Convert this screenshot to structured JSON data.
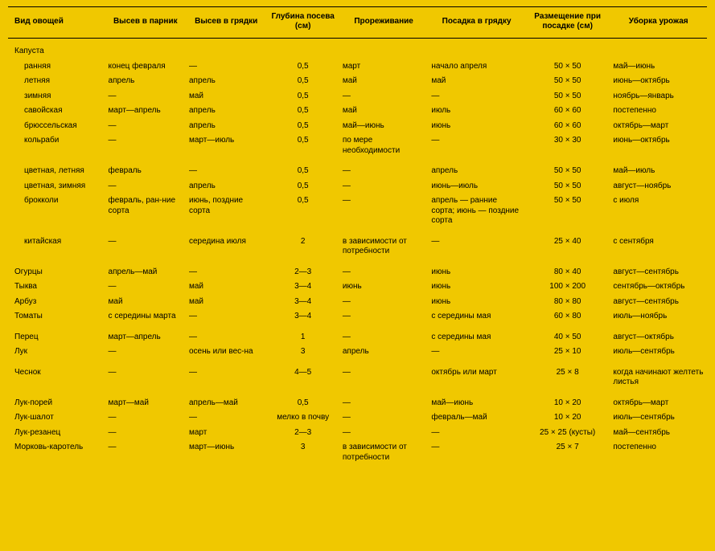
{
  "columns": [
    "Вид овощей",
    "Высев в парник",
    "Высев в грядки",
    "Глубина посева (см)",
    "Прореживание",
    "Посадка в грядку",
    "Размещение при посадке (см)",
    "Уборка урожая"
  ],
  "rows": [
    {
      "type": "section",
      "cells": [
        "Капуста",
        "",
        "",
        "",
        "",
        "",
        "",
        ""
      ]
    },
    {
      "type": "indent",
      "cells": [
        "ранняя",
        "конец февраля",
        "—",
        "0,5",
        "март",
        "начало апреля",
        "50 × 50",
        "май—июнь"
      ]
    },
    {
      "type": "indent",
      "cells": [
        "летняя",
        "апрель",
        "апрель",
        "0,5",
        "май",
        "май",
        "50 × 50",
        "июнь—октябрь"
      ]
    },
    {
      "type": "indent",
      "cells": [
        "зимняя",
        "—",
        "май",
        "0,5",
        "—",
        "—",
        "50 × 50",
        "ноябрь—январь"
      ]
    },
    {
      "type": "indent",
      "cells": [
        "савойская",
        "март—апрель",
        "апрель",
        "0,5",
        "май",
        "июль",
        "60 × 60",
        "постепенно"
      ]
    },
    {
      "type": "indent",
      "cells": [
        "брюссельская",
        "—",
        "апрель",
        "0,5",
        "май—июнь",
        "июнь",
        "60 × 60",
        "октябрь—март"
      ]
    },
    {
      "type": "indent",
      "cells": [
        "кольраби",
        "—",
        "март—июль",
        "0,5",
        "по мере необходимости",
        "—",
        "30 × 30",
        "июнь—октябрь"
      ]
    },
    {
      "type": "indent gap",
      "cells": [
        "цветная, летняя",
        "февраль",
        "—",
        "0,5",
        "—",
        "апрель",
        "50 × 50",
        "май—июль"
      ]
    },
    {
      "type": "indent",
      "cells": [
        "цветная, зимняя",
        "—",
        "апрель",
        "0,5",
        "—",
        "июнь—июль",
        "50 × 50",
        "август—ноябрь"
      ]
    },
    {
      "type": "indent",
      "cells": [
        "брокколи",
        "февраль, ран-ние сорта",
        "июнь, поздние сорта",
        "0,5",
        "—",
        "апрель — ранние сорта; июнь — поздние сорта",
        "50 × 50",
        "с июля"
      ]
    },
    {
      "type": "indent gap",
      "cells": [
        "китайская",
        "—",
        "середина июля",
        "2",
        "в зависимости от потребности",
        "—",
        "25 × 40",
        "с сентября"
      ]
    },
    {
      "type": "gap",
      "cells": [
        "Огурцы",
        "апрель—май",
        "—",
        "2—3",
        "—",
        "июнь",
        "80 × 40",
        "август—сентябрь"
      ]
    },
    {
      "type": "",
      "cells": [
        "Тыква",
        "—",
        "май",
        "3—4",
        "июнь",
        "июнь",
        "100 × 200",
        "сентябрь—октябрь"
      ]
    },
    {
      "type": "",
      "cells": [
        "Арбуз",
        "май",
        "май",
        "3—4",
        "—",
        "июнь",
        "80 × 80",
        "август—сентябрь"
      ]
    },
    {
      "type": "",
      "cells": [
        "Томаты",
        "с середины марта",
        "—",
        "3—4",
        "—",
        "с середины мая",
        "60 × 80",
        "июль—ноябрь"
      ]
    },
    {
      "type": "gap",
      "cells": [
        "Перец",
        "март—апрель",
        "—",
        "1",
        "—",
        "с середины мая",
        "40 × 50",
        "август—октябрь"
      ]
    },
    {
      "type": "",
      "cells": [
        "Лук",
        "—",
        "осень или вес-на",
        "3",
        "апрель",
        "—",
        "25 × 10",
        "июль—сентябрь"
      ]
    },
    {
      "type": "gap",
      "cells": [
        "Чеснок",
        "—",
        "—",
        "4—5",
        "—",
        "октябрь или март",
        "25 × 8",
        "когда начинают желтеть листья"
      ]
    },
    {
      "type": "gap",
      "cells": [
        "Лук-порей",
        "март—май",
        "апрель—май",
        "0,5",
        "—",
        "май—июнь",
        "10 × 20",
        "октябрь—март"
      ]
    },
    {
      "type": "",
      "cells": [
        "Лук-шалот",
        "—",
        "—",
        "мелко в почву",
        "—",
        "февраль—май",
        "10 × 20",
        "июль—сентябрь"
      ]
    },
    {
      "type": "",
      "cells": [
        "Лук-резанец",
        "—",
        "март",
        "2—3",
        "—",
        "—",
        "25 × 25 (кусты)",
        "май—сентябрь"
      ]
    },
    {
      "type": "",
      "cells": [
        "Морковь-каротель",
        "—",
        "март—июнь",
        "3",
        "в зависимости от потребности",
        "—",
        "25 × 7",
        "постепенно"
      ]
    }
  ],
  "centerCols": [
    3,
    6
  ],
  "style": {
    "background": "#f0c800",
    "text": "#000000",
    "fontSize": 10,
    "headerBorder": "#000000"
  }
}
